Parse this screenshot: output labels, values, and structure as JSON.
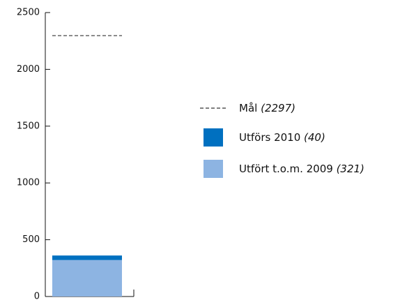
{
  "chart_data": {
    "type": "stacked-bar",
    "categories": [
      null
    ],
    "series": [
      {
        "name": "Utfört t.o.m. 2009",
        "color": "#8db4e2",
        "values": [
          321
        ],
        "value_labels": [
          "(321)"
        ]
      },
      {
        "name": "Utförs 2010",
        "color": "#0070c0",
        "values": [
          40
        ],
        "value_labels": [
          "(40)"
        ]
      }
    ],
    "target": {
      "name": "Mål",
      "value": 2297,
      "value_label": "(2297)",
      "color": "#333333"
    },
    "ylim": [
      0,
      2500
    ],
    "yticks": [
      0,
      500,
      1000,
      1500,
      2000,
      2500
    ]
  }
}
